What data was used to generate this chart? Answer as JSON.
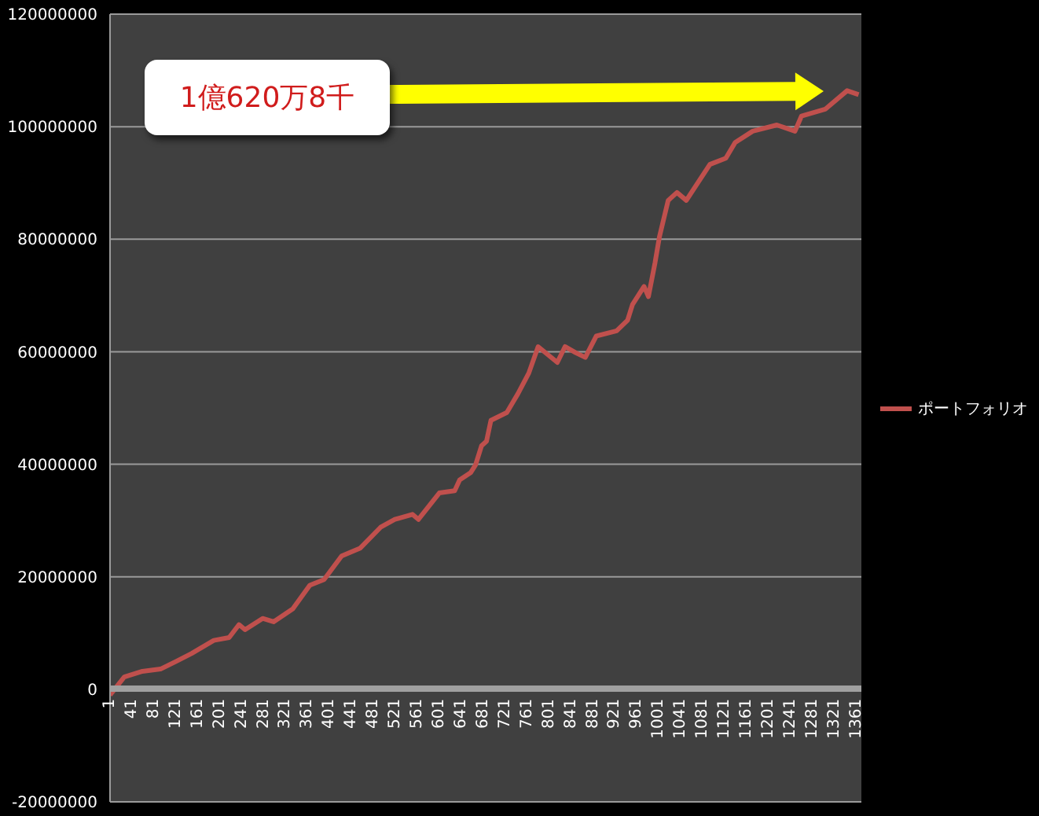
{
  "chart_data": {
    "type": "line",
    "x": [
      1,
      27,
      60,
      93,
      122,
      150,
      190,
      218,
      236,
      247,
      279,
      299,
      334,
      365,
      391,
      423,
      457,
      494,
      520,
      552,
      563,
      601,
      629,
      638,
      658,
      667,
      678,
      687,
      695,
      724,
      744,
      764,
      781,
      816,
      830,
      850,
      867,
      887,
      924,
      944,
      953,
      974,
      982,
      994,
      1002,
      1018,
      1034,
      1051,
      1094,
      1123,
      1140,
      1172,
      1216,
      1249,
      1261,
      1304,
      1344,
      1365
    ],
    "series": [
      {
        "name": "ポートフォリオ",
        "color": "#c0504d",
        "values": [
          -1000000,
          2200000,
          3200000,
          3600000,
          5000000,
          6400000,
          8700000,
          9200000,
          11500000,
          10600000,
          12600000,
          12000000,
          14300000,
          18500000,
          19500000,
          23700000,
          25100000,
          28800000,
          30200000,
          31100000,
          30200000,
          34900000,
          35300000,
          37200000,
          38500000,
          39900000,
          43300000,
          44100000,
          47800000,
          49200000,
          52500000,
          56200000,
          60900000,
          58100000,
          60900000,
          59800000,
          59000000,
          62800000,
          63700000,
          65600000,
          68400000,
          71600000,
          69800000,
          75800000,
          80400000,
          86900000,
          88300000,
          86900000,
          93300000,
          94400000,
          97200000,
          99200000,
          100300000,
          99200000,
          101900000,
          103100000,
          106400000,
          105700000
        ]
      }
    ],
    "xlim": [
      1,
      1370
    ],
    "xticks": [
      1,
      41,
      81,
      121,
      161,
      201,
      241,
      281,
      321,
      361,
      401,
      441,
      481,
      521,
      561,
      601,
      641,
      681,
      721,
      761,
      801,
      841,
      881,
      921,
      961,
      1001,
      1041,
      1081,
      1121,
      1161,
      1201,
      1241,
      1281,
      1321,
      1361
    ],
    "ylim": [
      -20000000,
      120000000
    ],
    "yticks": [
      -20000000,
      0,
      20000000,
      40000000,
      60000000,
      80000000,
      100000000,
      120000000
    ],
    "grid": "y",
    "legend": "right",
    "marker": "none",
    "line_style": "solid",
    "annotations": [
      "1億620万8千"
    ]
  }
}
